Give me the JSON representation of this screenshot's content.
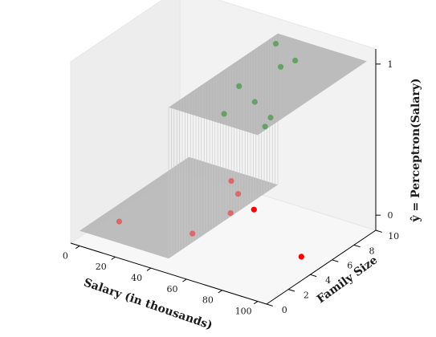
{
  "chart_data": {
    "type": "scatter",
    "projection": "3d",
    "xlabel": "Salary (in thousands)",
    "ylabel": "Family Size",
    "zlabel": "ŷ = Perceptron(Salary)",
    "xlim": [
      -5,
      105
    ],
    "ylim": [
      0,
      10
    ],
    "zlim": [
      -0.1,
      1.1
    ],
    "x_ticks": [
      0,
      20,
      40,
      60,
      80,
      100
    ],
    "y_ticks": [
      0,
      2,
      4,
      6,
      8,
      10
    ],
    "z_ticks": [
      0,
      1
    ],
    "threshold": 50,
    "surface": {
      "description_color": "#b0b0b0",
      "low_value": 0,
      "high_value": 1
    },
    "grid": false,
    "colors": {
      "positive": "#008000",
      "negative": "#ff0000",
      "pane": "#f2f2f2",
      "surface": "#b3b3b3"
    },
    "series": [
      {
        "color": "#008000",
        "points": [
          {
            "x": 55,
            "y": 9,
            "z": 1
          },
          {
            "x": 70,
            "y": 7,
            "z": 1
          },
          {
            "x": 65,
            "y": 4,
            "z": 1
          },
          {
            "x": 72,
            "y": 8,
            "z": 1
          },
          {
            "x": 80,
            "y": 3,
            "z": 1
          },
          {
            "x": 95,
            "y": 2,
            "z": 1
          },
          {
            "x": 98,
            "y": 1,
            "z": 1
          },
          {
            "x": 75,
            "y": 1,
            "z": 1
          }
        ]
      },
      {
        "color": "#ff0000",
        "points": [
          {
            "x": 10,
            "y": 2,
            "z": 0
          },
          {
            "x": 45,
            "y": 3,
            "z": 0
          },
          {
            "x": 40,
            "y": 8,
            "z": 0
          },
          {
            "x": 48,
            "y": 6,
            "z": 0
          },
          {
            "x": 30,
            "y": 9,
            "z": 0
          },
          {
            "x": 55,
            "y": 7,
            "z": 0
          },
          {
            "x": 100,
            "y": 4,
            "z": 0
          }
        ]
      }
    ]
  }
}
